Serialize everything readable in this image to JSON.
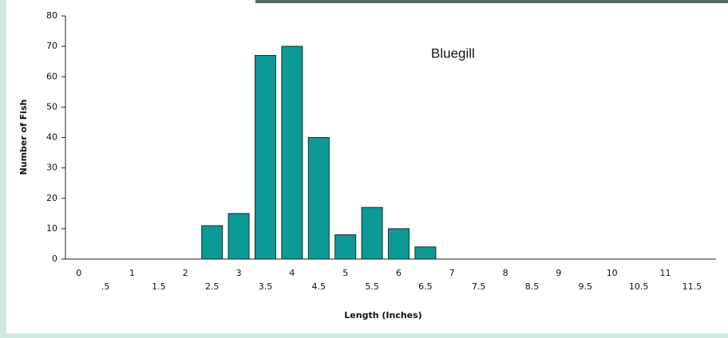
{
  "chart_data": {
    "type": "bar",
    "annotation": "Bluegill",
    "x_label": "Length (Inches)",
    "y_label": "Number of Fish",
    "categories": [
      "0",
      ".5",
      "1",
      "1.5",
      "2",
      "2.5",
      "3",
      "3.5",
      "4",
      "4.5",
      "5",
      "5.5",
      "6",
      "6.5",
      "7",
      "7.5",
      "8",
      "8.5",
      "9",
      "9.5",
      "10",
      "10.5",
      "11",
      "11.5"
    ],
    "values": [
      0,
      0,
      0,
      0,
      0,
      11,
      15,
      67,
      70,
      40,
      8,
      17,
      10,
      4,
      0,
      0,
      0,
      0,
      0,
      0,
      0,
      0,
      0,
      0
    ],
    "color": "#0b9a95",
    "ylim": [
      0,
      80
    ],
    "yticks": [
      0,
      10,
      20,
      30,
      40,
      50,
      60,
      70,
      80
    ],
    "grid": false
  }
}
